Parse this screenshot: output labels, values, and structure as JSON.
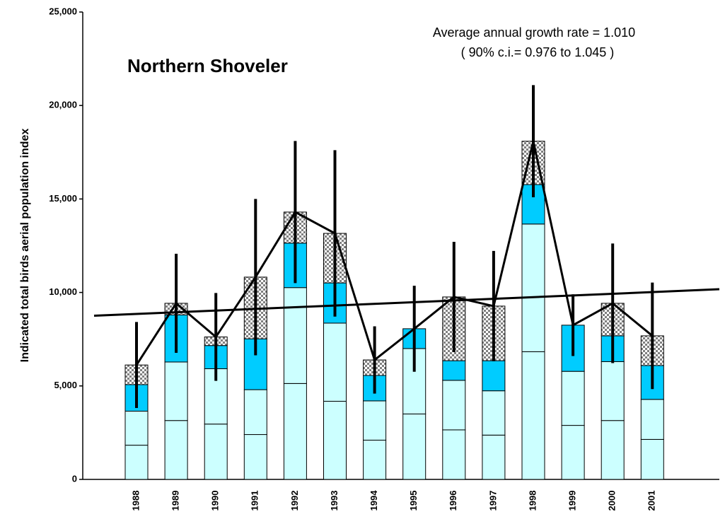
{
  "chart_data": {
    "type": "stacked_bar",
    "title": "Northern Shoveler",
    "annotations": [
      "Average annual growth rate = 1.010",
      "( 90% c.i.= 0.976 to 1.045 )"
    ],
    "y_label": "Indicated total birds aerial population index",
    "categories": [
      "1988",
      "1989",
      "1990",
      "1991",
      "1992",
      "1993",
      "1994",
      "1995",
      "1996",
      "1997",
      "1998",
      "1999",
      "2000",
      "2001"
    ],
    "series": [
      {
        "color": "#ccffff",
        "values": [
          1830,
          3150,
          2960,
          2400,
          5130,
          4180,
          2100,
          3500,
          2650,
          2370,
          6830,
          2890,
          3150,
          2140
        ]
      },
      {
        "color": "#ccffff",
        "values": [
          1820,
          3130,
          2960,
          2400,
          5130,
          4180,
          2100,
          3500,
          2650,
          2370,
          6830,
          2890,
          3150,
          2140
        ]
      },
      {
        "color": "#00ccff",
        "values": [
          1420,
          2520,
          1240,
          2720,
          2380,
          2150,
          1360,
          1060,
          1050,
          1610,
          2110,
          2470,
          1380,
          1810
        ]
      },
      {
        "color": "#808080",
        "values": [
          1050,
          620,
          460,
          3300,
          1660,
          2650,
          830,
          0,
          3410,
          2920,
          2320,
          0,
          1740,
          1590
        ]
      }
    ],
    "errors": [
      2300,
      2650,
      2350,
      4180,
      3800,
      4450,
      1800,
      2300,
      2950,
      2950,
      3000,
      1650,
      3200,
      2850
    ],
    "trend": [
      8850,
      10020
    ],
    "ylim": [
      0,
      25000
    ],
    "yticks": [
      0,
      {
        "value": 5000,
        "label": "5,000"
      },
      {
        "value": 10000,
        "label": "10,000"
      },
      {
        "value": 15000,
        "label": "15,000"
      },
      {
        "value": 20000,
        "label": "20,000"
      },
      {
        "value": 25000,
        "label": "25,000"
      }
    ]
  }
}
